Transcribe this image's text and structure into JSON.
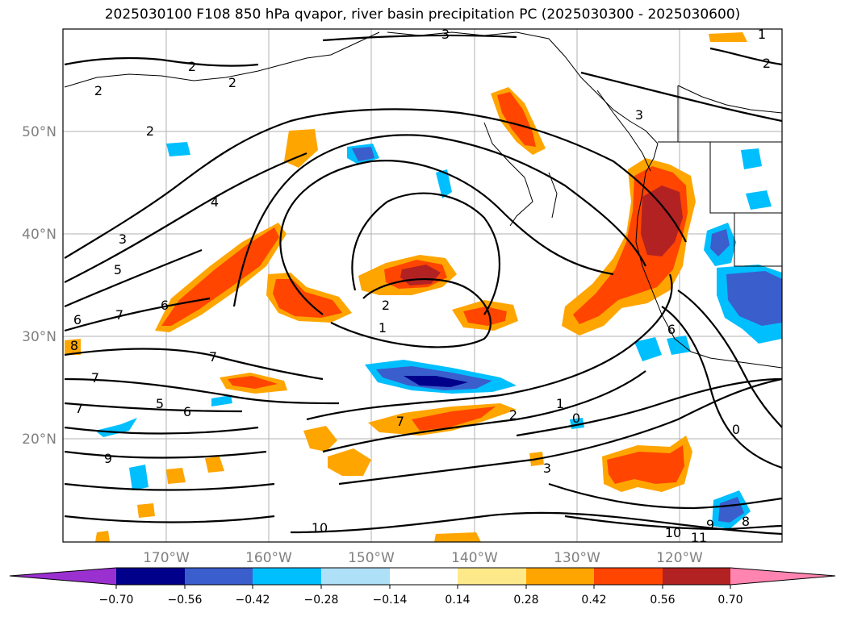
{
  "title": "2025030100 F108 850 hPa qvapor, river basin precipitation PC (2025030300 - 2025030600)",
  "lat_labels": [
    "50°N",
    "40°N",
    "30°N",
    "20°N"
  ],
  "lon_labels": [
    "170°W",
    "160°W",
    "150°W",
    "140°W",
    "130°W",
    "120°W"
  ],
  "contour_labels": [
    "3",
    "2",
    "2",
    "2",
    "4",
    "3",
    "5",
    "6",
    "6",
    "7",
    "8",
    "7",
    "7",
    "5",
    "6",
    "7",
    "9",
    "3",
    "2",
    "1",
    "7",
    "1",
    "2",
    "0",
    "3",
    "0",
    "6",
    "10",
    "10",
    "11",
    "9",
    "8",
    "1",
    "2",
    "2"
  ],
  "colorbar": {
    "ticks": [
      "−0.70",
      "−0.56",
      "−0.42",
      "−0.28",
      "−0.14",
      "0.14",
      "0.28",
      "0.42",
      "0.56",
      "0.70"
    ],
    "colors": {
      "under": "#9b30d0",
      "lt_m070": "#00008b",
      "m056": "#3a5ecc",
      "m042": "#00bfff",
      "m028": "#aee0f8",
      "neutral": "#ffffff",
      "p014": "#fde98a",
      "p028": "#ffa500",
      "p042": "#ff4500",
      "p056": "#b22222",
      "over": "#ff85b0"
    }
  }
}
